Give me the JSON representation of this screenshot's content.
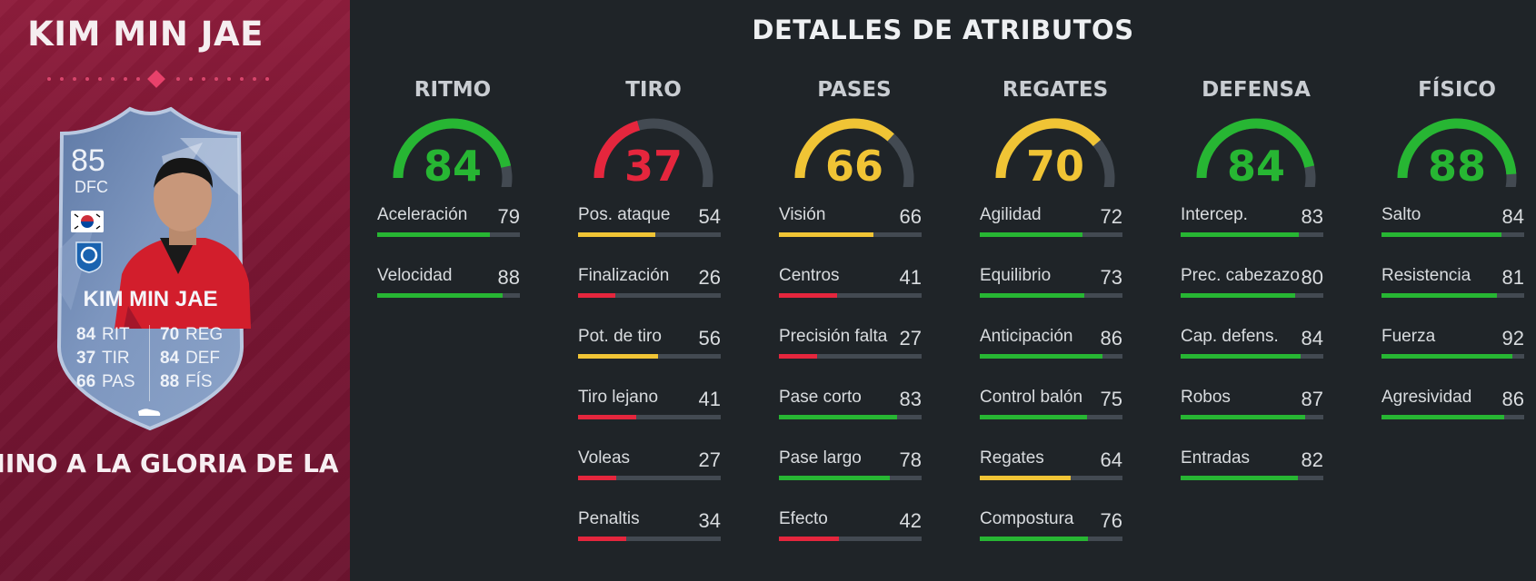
{
  "player": {
    "name": "KIM MIN JAE",
    "promo": "MINO A LA GLORIA DE LA",
    "card": {
      "rating": "85",
      "position": "DFC",
      "name": "KIM MIN JAE",
      "left_stats": [
        {
          "val": "84",
          "abbr": "RIT"
        },
        {
          "val": "37",
          "abbr": "TIR"
        },
        {
          "val": "66",
          "abbr": "PAS"
        }
      ],
      "right_stats": [
        {
          "val": "70",
          "abbr": "REG"
        },
        {
          "val": "84",
          "abbr": "DEF"
        },
        {
          "val": "88",
          "abbr": "FÍS"
        }
      ],
      "flag_icon": "south-korea-flag-icon",
      "club_icon": "club-badge-icon"
    }
  },
  "colors": {
    "green": "#27b633",
    "yellow": "#f0c435",
    "red": "#e5263d",
    "track": "#434a52"
  },
  "title": "DETALLES DE ATRIBUTOS",
  "categories": [
    {
      "name": "RITMO",
      "value": "84",
      "color": "green",
      "stats": [
        {
          "label": "Aceleración",
          "value": "79",
          "color": "green"
        },
        {
          "label": "Velocidad",
          "value": "88",
          "color": "green"
        }
      ]
    },
    {
      "name": "TIRO",
      "value": "37",
      "color": "red",
      "stats": [
        {
          "label": "Pos. ataque",
          "value": "54",
          "color": "yellow"
        },
        {
          "label": "Finalización",
          "value": "26",
          "color": "red"
        },
        {
          "label": "Pot. de tiro",
          "value": "56",
          "color": "yellow"
        },
        {
          "label": "Tiro lejano",
          "value": "41",
          "color": "red"
        },
        {
          "label": "Voleas",
          "value": "27",
          "color": "red"
        },
        {
          "label": "Penaltis",
          "value": "34",
          "color": "red"
        }
      ]
    },
    {
      "name": "PASES",
      "value": "66",
      "color": "yellow",
      "stats": [
        {
          "label": "Visión",
          "value": "66",
          "color": "yellow"
        },
        {
          "label": "Centros",
          "value": "41",
          "color": "red"
        },
        {
          "label": "Precisión falta",
          "value": "27",
          "color": "red"
        },
        {
          "label": "Pase corto",
          "value": "83",
          "color": "green"
        },
        {
          "label": "Pase largo",
          "value": "78",
          "color": "green"
        },
        {
          "label": "Efecto",
          "value": "42",
          "color": "red"
        }
      ]
    },
    {
      "name": "REGATES",
      "value": "70",
      "color": "yellow",
      "stats": [
        {
          "label": "Agilidad",
          "value": "72",
          "color": "green"
        },
        {
          "label": "Equilibrio",
          "value": "73",
          "color": "green"
        },
        {
          "label": "Anticipación",
          "value": "86",
          "color": "green"
        },
        {
          "label": "Control balón",
          "value": "75",
          "color": "green"
        },
        {
          "label": "Regates",
          "value": "64",
          "color": "yellow"
        },
        {
          "label": "Compostura",
          "value": "76",
          "color": "green"
        }
      ]
    },
    {
      "name": "DEFENSA",
      "value": "84",
      "color": "green",
      "stats": [
        {
          "label": "Intercep.",
          "value": "83",
          "color": "green"
        },
        {
          "label": "Prec. cabezazo",
          "value": "80",
          "color": "green"
        },
        {
          "label": "Cap. defens.",
          "value": "84",
          "color": "green"
        },
        {
          "label": "Robos",
          "value": "87",
          "color": "green"
        },
        {
          "label": "Entradas",
          "value": "82",
          "color": "green"
        }
      ]
    },
    {
      "name": "FÍSICO",
      "value": "88",
      "color": "green",
      "stats": [
        {
          "label": "Salto",
          "value": "84",
          "color": "green"
        },
        {
          "label": "Resistencia",
          "value": "81",
          "color": "green"
        },
        {
          "label": "Fuerza",
          "value": "92",
          "color": "green"
        },
        {
          "label": "Agresividad",
          "value": "86",
          "color": "green"
        }
      ]
    }
  ]
}
